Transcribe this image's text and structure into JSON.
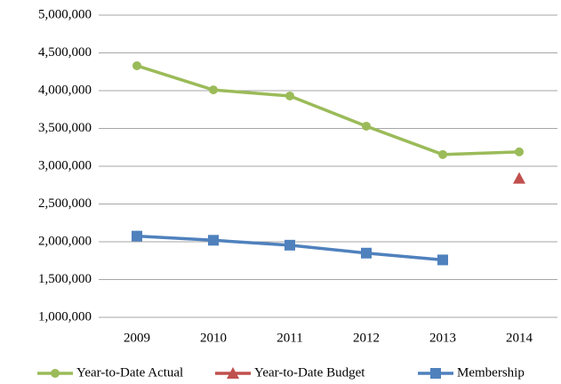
{
  "chart_data": {
    "type": "line",
    "categories": [
      "2009",
      "2010",
      "2011",
      "2012",
      "2013",
      "2014"
    ],
    "series": [
      {
        "name": "Year-to-Date Actual",
        "color": "#9bbb59",
        "marker": "circle",
        "values": [
          4330000,
          4010000,
          3930000,
          3530000,
          3155000,
          3190000
        ]
      },
      {
        "name": "Year-to-Date Budget",
        "color": "#c0504d",
        "marker": "triangle",
        "values": [
          null,
          null,
          null,
          null,
          null,
          2840000
        ]
      },
      {
        "name": "Membership",
        "color": "#4f81bd",
        "marker": "square",
        "values": [
          2075000,
          2020000,
          1955000,
          1850000,
          1760000,
          null
        ]
      }
    ],
    "ylim": [
      1000000,
      5000000
    ],
    "yticks": [
      {
        "value": 1000000,
        "label": "1,000,000"
      },
      {
        "value": 1500000,
        "label": "1,500,000"
      },
      {
        "value": 2000000,
        "label": "2,000,000"
      },
      {
        "value": 2500000,
        "label": "2,500,000"
      },
      {
        "value": 3000000,
        "label": "3,000,000"
      },
      {
        "value": 3500000,
        "label": "3,500,000"
      },
      {
        "value": 4000000,
        "label": "4,000,000"
      },
      {
        "value": 4500000,
        "label": "4,500,000"
      },
      {
        "value": 5000000,
        "label": "5,000,000"
      }
    ],
    "grid": true,
    "legend": "bottom"
  }
}
